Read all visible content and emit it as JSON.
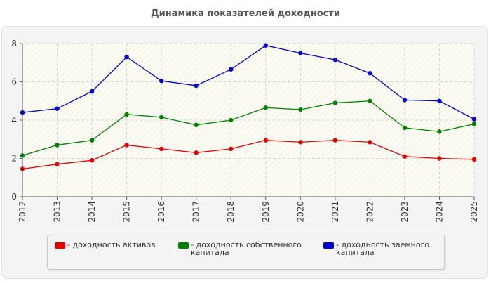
{
  "chart_data": {
    "type": "line",
    "title": "Динамика показателей доходности",
    "xlabel": "",
    "ylabel": "",
    "ylim": [
      0,
      8
    ],
    "yticks": [
      0,
      2,
      4,
      6,
      8
    ],
    "grid": true,
    "legend_position": "bottom",
    "x": [
      "2012",
      "2013",
      "2014",
      "2015",
      "2016",
      "2017",
      "2018",
      "2019",
      "2020",
      "2021",
      "2022",
      "2023",
      "2024",
      "2025"
    ],
    "series": [
      {
        "name": "- доходность активов",
        "color": "#e00000",
        "values": [
          1.45,
          1.7,
          1.9,
          2.7,
          2.5,
          2.3,
          2.5,
          2.95,
          2.85,
          2.95,
          2.85,
          2.1,
          2.0,
          1.95
        ]
      },
      {
        "name": "- доходность собственного капитала",
        "color": "#008000",
        "values": [
          2.15,
          2.7,
          2.95,
          4.3,
          4.15,
          3.75,
          4.0,
          4.65,
          4.55,
          4.9,
          5.0,
          3.6,
          3.4,
          3.8
        ]
      },
      {
        "name": "- доходность заемного капитала",
        "color": "#0000d0",
        "values": [
          4.4,
          4.6,
          5.5,
          7.3,
          6.05,
          5.8,
          6.65,
          7.9,
          7.5,
          7.15,
          6.45,
          5.05,
          5.0,
          4.05
        ]
      }
    ]
  }
}
